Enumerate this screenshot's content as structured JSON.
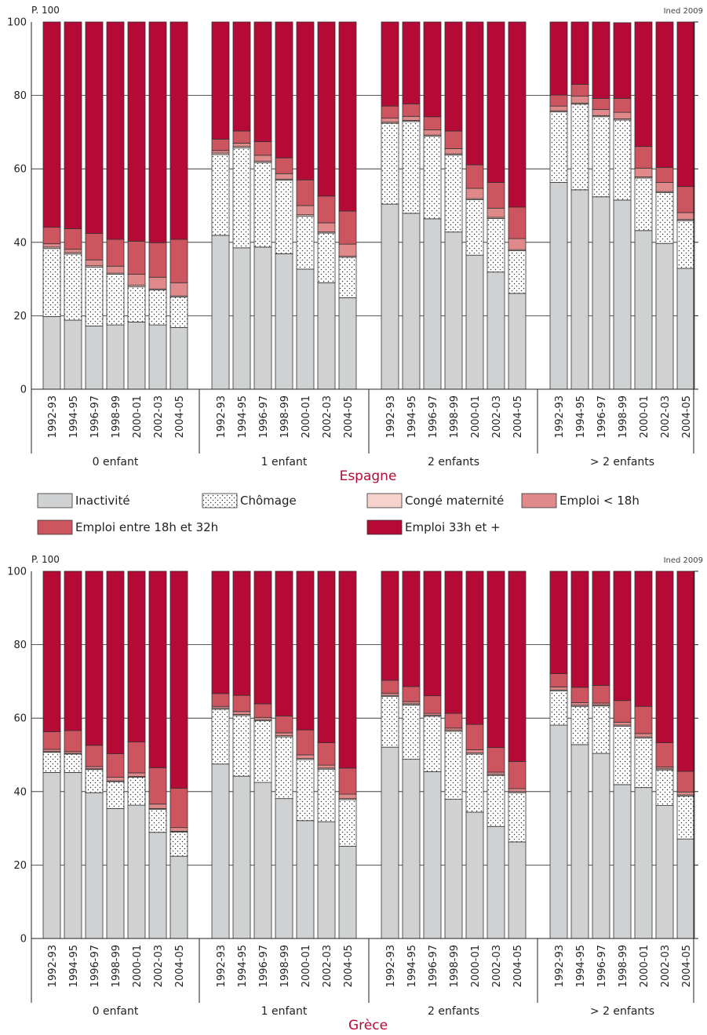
{
  "credit": "Ined 2009",
  "unit": "P. 100",
  "legend": [
    {
      "label": "Inactivité",
      "color": "#d0d1d3",
      "pattern": "none"
    },
    {
      "label": "Chômage",
      "color": "#ffffff",
      "pattern": "dots"
    },
    {
      "label": "Congé maternité",
      "color": "#f6d2cc",
      "pattern": "none"
    },
    {
      "label": "Emploi < 18h",
      "color": "#e0898a",
      "pattern": "none"
    },
    {
      "label": "Emploi entre 18h et 32h",
      "color": "#cd5560",
      "pattern": "none"
    },
    {
      "label": "Emploi 33h et +",
      "color": "#b40a35",
      "pattern": "none"
    }
  ],
  "chart_data": [
    {
      "type": "bar",
      "stacked": true,
      "title": "Espagne",
      "ylabel": "P. 100",
      "ylim": [
        0,
        100
      ],
      "yticks": [
        0,
        20,
        40,
        60,
        80,
        100
      ],
      "groups": [
        "0 enfant",
        "1 enfant",
        "2 enfants",
        "> 2 enfants"
      ],
      "categories": [
        "1992-93",
        "1994-95",
        "1996-97",
        "1998-99",
        "2000-01",
        "2002-03",
        "2004-05"
      ],
      "series": [
        {
          "name": "Inactivité",
          "values": [
            [
              19.8,
              18.8,
              17.2,
              17.5,
              18.3,
              17.5,
              16.8
            ],
            [
              41.9,
              38.5,
              38.7,
              36.9,
              32.7,
              29.0,
              24.9
            ],
            [
              50.4,
              47.9,
              46.4,
              42.8,
              36.5,
              31.9,
              26.1
            ],
            [
              56.3,
              54.3,
              52.4,
              51.5,
              43.2,
              39.7,
              32.9
            ]
          ]
        },
        {
          "name": "Chômage",
          "values": [
            [
              18.5,
              18.0,
              16.0,
              13.8,
              9.6,
              9.5,
              8.3
            ],
            [
              22.0,
              27.2,
              23.0,
              20.0,
              14.4,
              13.5,
              11.0
            ],
            [
              22.0,
              25.0,
              22.5,
              21.0,
              15.1,
              14.6,
              11.6
            ],
            [
              19.2,
              23.3,
              21.8,
              21.8,
              14.3,
              13.8,
              13.0
            ]
          ]
        },
        {
          "name": "Congé maternité",
          "values": [
            [
              0.4,
              0.4,
              0.4,
              0.3,
              0.4,
              0.3,
              0.3
            ],
            [
              0.4,
              0.4,
              0.4,
              0.3,
              0.4,
              0.3,
              0.3
            ],
            [
              0.3,
              0.3,
              0.3,
              0.3,
              0.3,
              0.3,
              0.3
            ],
            [
              0.3,
              0.3,
              0.3,
              0.3,
              0.3,
              0.3,
              0.3
            ]
          ]
        },
        {
          "name": "Emploi < 18h",
          "values": [
            [
              0.9,
              0.9,
              1.6,
              1.9,
              3.0,
              3.2,
              3.6
            ],
            [
              0.7,
              0.9,
              1.6,
              1.5,
              2.5,
              2.5,
              3.3
            ],
            [
              1.1,
              1.1,
              1.4,
              1.4,
              2.8,
              2.5,
              3.0
            ],
            [
              1.3,
              1.9,
              1.7,
              1.8,
              2.4,
              2.5,
              1.9
            ]
          ]
        },
        {
          "name": "Emploi entre 18h et 32h",
          "values": [
            [
              4.5,
              5.6,
              7.2,
              7.3,
              9.0,
              9.4,
              11.8
            ],
            [
              3.1,
              3.3,
              3.7,
              4.3,
              7.0,
              7.3,
              9.0
            ],
            [
              3.3,
              3.4,
              3.6,
              4.8,
              6.4,
              7.0,
              8.6
            ],
            [
              3.0,
              3.2,
              3.0,
              3.8,
              5.9,
              4.1,
              7.1
            ]
          ]
        },
        {
          "name": "Emploi 33h et +",
          "values": [
            [
              55.9,
              56.3,
              57.6,
              59.2,
              59.7,
              60.1,
              59.2
            ],
            [
              31.9,
              29.7,
              32.6,
              37.0,
              43.0,
              47.4,
              51.5
            ],
            [
              22.9,
              22.3,
              25.8,
              29.7,
              38.9,
              43.7,
              50.4
            ],
            [
              19.9,
              17.0,
              20.8,
              20.6,
              33.9,
              39.6,
              44.8
            ]
          ]
        }
      ]
    },
    {
      "type": "bar",
      "stacked": true,
      "title": "Grèce",
      "ylabel": "P. 100",
      "ylim": [
        0,
        100
      ],
      "yticks": [
        0,
        20,
        40,
        60,
        80,
        100
      ],
      "groups": [
        "0 enfant",
        "1 enfant",
        "2 enfants",
        "> 2 enfants"
      ],
      "categories": [
        "1992-93",
        "1994-95",
        "1996-97",
        "1998-99",
        "2000-01",
        "2002-03",
        "2004-05"
      ],
      "series": [
        {
          "name": "Inactivité",
          "values": [
            [
              45.2,
              45.2,
              39.7,
              35.4,
              36.3,
              28.9,
              22.4
            ],
            [
              47.5,
              44.2,
              42.5,
              38.1,
              32.1,
              31.8,
              25.1
            ],
            [
              52.1,
              48.8,
              45.4,
              37.9,
              34.4,
              30.5,
              26.3
            ],
            [
              58.1,
              52.8,
              50.4,
              41.9,
              41.1,
              36.2,
              27.1
            ]
          ]
        },
        {
          "name": "Chômage",
          "values": [
            [
              5.5,
              5.0,
              6.3,
              7.3,
              7.6,
              6.3,
              6.6
            ],
            [
              14.9,
              16.5,
              16.8,
              16.8,
              16.6,
              14.3,
              12.7
            ],
            [
              13.8,
              14.8,
              15.1,
              18.5,
              15.8,
              13.9,
              13.4
            ],
            [
              9.3,
              10.4,
              12.9,
              15.9,
              13.5,
              9.7,
              11.7
            ]
          ]
        },
        {
          "name": "Congé maternité",
          "values": [
            [
              0.2,
              0.2,
              0.2,
              0.2,
              0.2,
              0.2,
              0.2
            ],
            [
              0.3,
              0.3,
              0.3,
              0.3,
              0.3,
              0.3,
              0.3
            ],
            [
              0.3,
              0.3,
              0.3,
              0.3,
              0.3,
              0.3,
              0.3
            ],
            [
              0.3,
              0.3,
              0.3,
              0.3,
              0.3,
              0.3,
              0.3
            ]
          ]
        },
        {
          "name": "Emploi < 18h",
          "values": [
            [
              0.6,
              0.5,
              0.6,
              1.0,
              1.0,
              1.2,
              1.0
            ],
            [
              0.5,
              0.8,
              0.6,
              0.8,
              1.0,
              0.8,
              1.2
            ],
            [
              0.6,
              0.6,
              0.5,
              0.6,
              0.9,
              0.6,
              0.8
            ],
            [
              0.8,
              0.7,
              0.5,
              0.8,
              0.9,
              0.5,
              0.8
            ]
          ]
        },
        {
          "name": "Emploi entre 18h et 32h",
          "values": [
            [
              4.8,
              5.7,
              5.8,
              6.4,
              8.4,
              9.9,
              10.7
            ],
            [
              3.5,
              4.4,
              3.7,
              4.6,
              6.8,
              6.1,
              7.1
            ],
            [
              3.5,
              4.1,
              4.8,
              4.0,
              6.9,
              6.7,
              7.4
            ],
            [
              3.6,
              4.2,
              4.8,
              5.9,
              7.4,
              6.6,
              5.6
            ]
          ]
        },
        {
          "name": "Emploi 33h et +",
          "values": [
            [
              43.7,
              43.4,
              47.4,
              49.7,
              46.5,
              53.5,
              59.1
            ],
            [
              33.3,
              33.8,
              36.1,
              39.4,
              43.2,
              46.7,
              53.6
            ],
            [
              29.7,
              31.4,
              33.9,
              38.7,
              41.7,
              48.0,
              51.8
            ],
            [
              27.9,
              31.6,
              31.1,
              35.2,
              36.8,
              46.7,
              54.5
            ]
          ]
        }
      ]
    }
  ]
}
